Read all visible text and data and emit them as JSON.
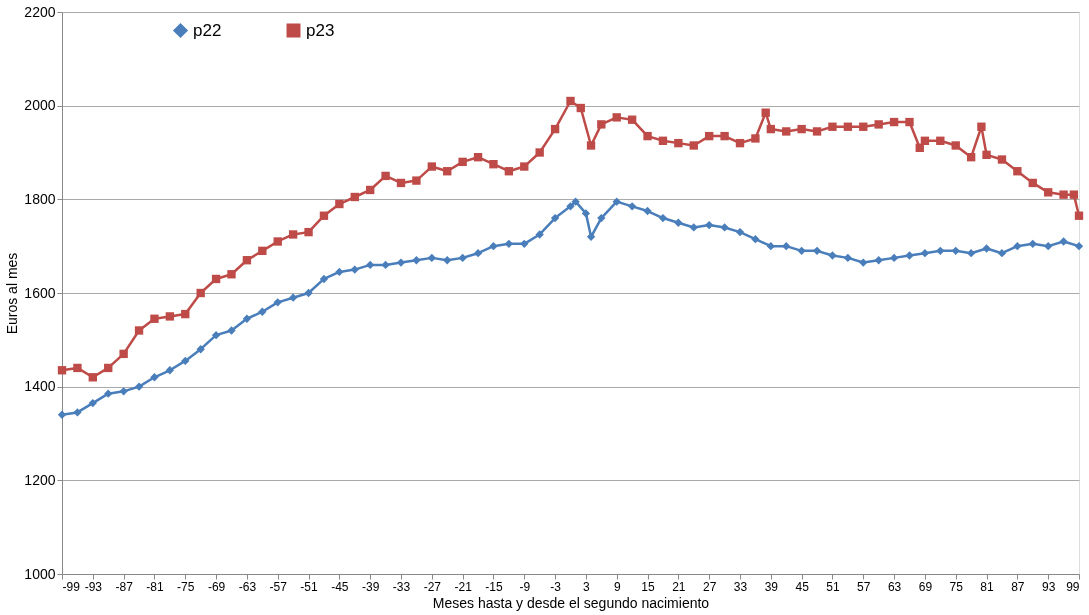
{
  "chart_data": {
    "type": "line",
    "xlabel": "Meses hasta y desde el segundo nacimiento",
    "ylabel": "Euros al mes",
    "xlim": [
      -99,
      99
    ],
    "xticks": [
      -99,
      -93,
      -87,
      -81,
      -75,
      -69,
      -63,
      -57,
      -51,
      -45,
      -39,
      -33,
      -27,
      -21,
      -15,
      -9,
      -3,
      3,
      9,
      15,
      21,
      27,
      33,
      39,
      45,
      51,
      57,
      63,
      69,
      75,
      81,
      87,
      93,
      99
    ],
    "ylim": [
      1000,
      2200
    ],
    "yticks": [
      1000,
      1200,
      1400,
      1600,
      1800,
      2000,
      2200
    ],
    "grid": "y",
    "legend": "top left",
    "line_style": "solid",
    "series": [
      {
        "name": "p22",
        "color": "#4a7ebb",
        "marker": "diamond",
        "x": [
          -99,
          -96,
          -93,
          -90,
          -87,
          -84,
          -81,
          -78,
          -75,
          -72,
          -69,
          -66,
          -63,
          -60,
          -57,
          -54,
          -51,
          -48,
          -45,
          -42,
          -39,
          -36,
          -33,
          -30,
          -27,
          -24,
          -21,
          -18,
          -15,
          -12,
          -9,
          -6,
          -3,
          0,
          1,
          3,
          4,
          6,
          9,
          12,
          15,
          18,
          21,
          24,
          27,
          30,
          33,
          36,
          39,
          42,
          45,
          48,
          51,
          54,
          57,
          60,
          63,
          66,
          69,
          72,
          75,
          78,
          81,
          84,
          87,
          90,
          93,
          96,
          99
        ],
        "values": [
          1340,
          1345,
          1365,
          1385,
          1390,
          1400,
          1420,
          1435,
          1455,
          1480,
          1510,
          1520,
          1545,
          1560,
          1580,
          1590,
          1600,
          1630,
          1645,
          1650,
          1660,
          1660,
          1665,
          1670,
          1675,
          1670,
          1675,
          1685,
          1700,
          1705,
          1705,
          1725,
          1760,
          1785,
          1795,
          1770,
          1720,
          1760,
          1795,
          1785,
          1775,
          1760,
          1750,
          1740,
          1745,
          1740,
          1730,
          1715,
          1700,
          1700,
          1690,
          1690,
          1680,
          1675,
          1665,
          1670,
          1675,
          1680,
          1685,
          1690,
          1690,
          1685,
          1695,
          1685,
          1700,
          1705,
          1700,
          1710,
          1700
        ]
      },
      {
        "name": "p23",
        "color": "#be4b48",
        "marker": "square",
        "x": [
          -99,
          -96,
          -93,
          -90,
          -87,
          -84,
          -81,
          -78,
          -75,
          -72,
          -69,
          -66,
          -63,
          -60,
          -57,
          -54,
          -51,
          -48,
          -45,
          -42,
          -39,
          -36,
          -33,
          -30,
          -27,
          -24,
          -21,
          -18,
          -15,
          -12,
          -9,
          -6,
          -3,
          0,
          2,
          4,
          6,
          9,
          12,
          15,
          18,
          21,
          24,
          27,
          30,
          33,
          36,
          38,
          39,
          42,
          45,
          48,
          51,
          54,
          57,
          60,
          63,
          66,
          68,
          69,
          72,
          75,
          78,
          80,
          81,
          84,
          87,
          90,
          93,
          96,
          98,
          99
        ],
        "values": [
          1435,
          1440,
          1420,
          1440,
          1470,
          1520,
          1545,
          1550,
          1555,
          1600,
          1630,
          1640,
          1670,
          1690,
          1710,
          1725,
          1730,
          1765,
          1790,
          1805,
          1820,
          1850,
          1835,
          1840,
          1870,
          1860,
          1880,
          1890,
          1875,
          1860,
          1870,
          1900,
          1950,
          2010,
          1995,
          1915,
          1960,
          1975,
          1970,
          1935,
          1925,
          1920,
          1915,
          1935,
          1935,
          1920,
          1930,
          1985,
          1950,
          1945,
          1950,
          1945,
          1955,
          1955,
          1955,
          1960,
          1965,
          1965,
          1910,
          1925,
          1925,
          1915,
          1890,
          1955,
          1895,
          1885,
          1860,
          1835,
          1815,
          1810,
          1810,
          1765
        ]
      }
    ]
  }
}
